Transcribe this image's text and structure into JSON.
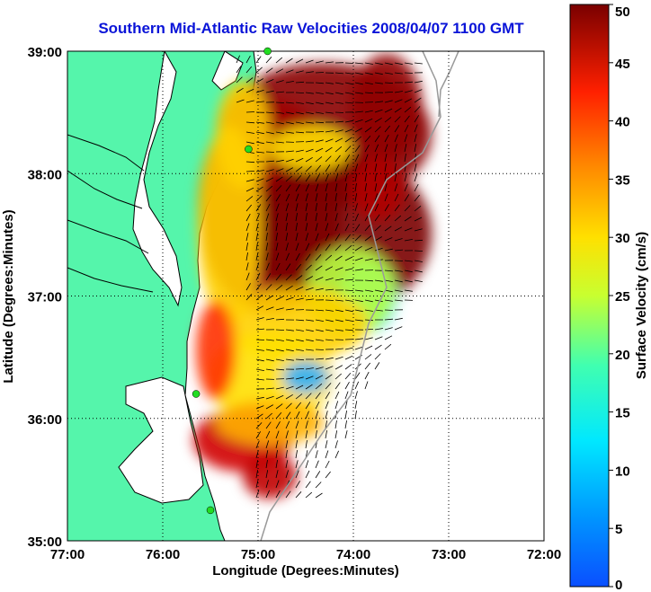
{
  "title": "Southern Mid-Atlantic Raw Velocities 2008/04/07 1100 GMT",
  "xlabel": "Longitude (Degrees:Minutes)",
  "ylabel": "Latitude (Degrees:Minutes)",
  "colorbar_label": "Surface Velocity (cm/s)",
  "colors": {
    "land": "#55f5ab",
    "water": "#ffffff",
    "title": "#0a14d8",
    "stations": "#22dd22"
  },
  "chart_data": {
    "type": "heatmap",
    "title": "Southern Mid-Atlantic Raw Velocities 2008/04/07 1100 GMT",
    "xlabel": "Longitude (Degrees:Minutes)",
    "ylabel": "Latitude (Degrees:Minutes)",
    "x_ticks": [
      "77:00",
      "76:00",
      "75:00",
      "74:00",
      "73:00",
      "72:00"
    ],
    "y_ticks": [
      "35:00",
      "36:00",
      "37:00",
      "38:00",
      "39:00"
    ],
    "xlim": [
      -77,
      -72
    ],
    "ylim": [
      35,
      39
    ],
    "grid": "dotted",
    "colorbar": {
      "label": "Surface Velocity (cm/s)",
      "range": [
        0,
        50
      ],
      "ticks": [
        "0",
        "5",
        "10",
        "15",
        "20",
        "25",
        "30",
        "35",
        "40",
        "45",
        "50"
      ],
      "colormap": "jet"
    },
    "stations": [
      {
        "lon": -74.9,
        "lat": 39.0
      },
      {
        "lon": -75.1,
        "lat": 38.2
      },
      {
        "lon": -75.65,
        "lat": 36.2
      },
      {
        "lon": -75.5,
        "lat": 35.25
      }
    ]
  }
}
